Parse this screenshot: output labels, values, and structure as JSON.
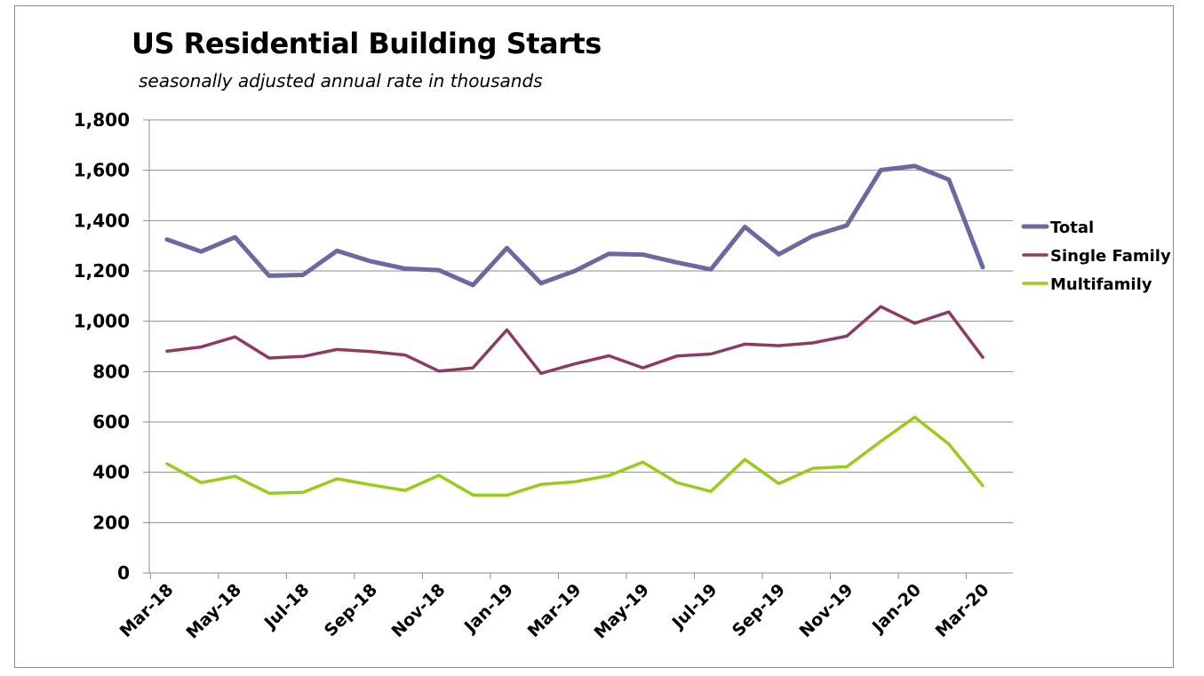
{
  "chart_data": {
    "type": "line",
    "title": "US Residential Building Starts",
    "subtitle": "seasonally adjusted annual rate in thousands",
    "xlabel": "",
    "ylabel": "",
    "ylim": [
      0,
      1800
    ],
    "yticks": [
      "0",
      "200",
      "400",
      "600",
      "800",
      "1,000",
      "1,200",
      "1,400",
      "1,600",
      "1,800"
    ],
    "x": [
      "Mar-18",
      "Apr-18",
      "May-18",
      "Jun-18",
      "Jul-18",
      "Aug-18",
      "Sep-18",
      "Oct-18",
      "Nov-18",
      "Dec-18",
      "Jan-19",
      "Feb-19",
      "Mar-19",
      "Apr-19",
      "May-19",
      "Jun-19",
      "Jul-19",
      "Aug-19",
      "Sep-19",
      "Oct-19",
      "Nov-19",
      "Dec-19",
      "Jan-20",
      "Feb-20",
      "Mar-20"
    ],
    "xticks_shown": [
      "Mar-18",
      "May-18",
      "Jul-18",
      "Sep-18",
      "Nov-18",
      "Jan-19",
      "Mar-19",
      "May-19",
      "Jul-19",
      "Sep-19",
      "Nov-19",
      "Jan-20",
      "Mar-20"
    ],
    "grid": true,
    "legend_position": "right",
    "series": [
      {
        "name": "Total",
        "color": "#6a6aa0",
        "values": [
          1325,
          1277,
          1334,
          1181,
          1184,
          1280,
          1238,
          1209,
          1203,
          1144,
          1291,
          1151,
          1200,
          1268,
          1265,
          1234,
          1206,
          1375,
          1266,
          1339,
          1381,
          1601,
          1617,
          1563,
          1215
        ]
      },
      {
        "name": "Single Family",
        "color": "#8e3a63",
        "values": [
          881,
          898,
          938,
          854,
          860,
          888,
          880,
          866,
          802,
          815,
          966,
          793,
          831,
          863,
          815,
          862,
          870,
          909,
          903,
          914,
          941,
          1058,
          992,
          1037,
          857
        ]
      },
      {
        "name": "Multifamily",
        "color": "#99cc1a",
        "values": [
          434,
          359,
          384,
          317,
          320,
          374,
          350,
          328,
          388,
          310,
          309,
          352,
          362,
          387,
          440,
          359,
          324,
          451,
          355,
          416,
          422,
          523,
          619,
          512,
          347
        ]
      }
    ]
  }
}
